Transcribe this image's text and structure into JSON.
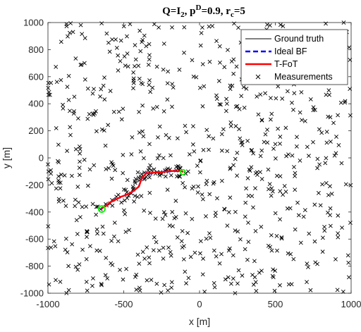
{
  "chart_data": {
    "type": "line",
    "title": {
      "q": "Q=I",
      "q_sub": "2",
      "sep1": ", p",
      "p_sup": "D",
      "p_val": "=0.9, r",
      "r_sub": "c",
      "r_val": "=5"
    },
    "xlabel": "x [m]",
    "ylabel": "y [m]",
    "xlim": [
      -1000,
      1000
    ],
    "ylim": [
      -1000,
      1000
    ],
    "xticks": [
      -1000,
      -500,
      0,
      500,
      1000
    ],
    "yticks": [
      -1000,
      -800,
      -600,
      -400,
      -200,
      0,
      200,
      400,
      600,
      800,
      1000
    ],
    "xtick_labels": [
      "-1000",
      "-500",
      "0",
      "500",
      "1000"
    ],
    "ytick_labels": [
      "-1000",
      "-800",
      "-600",
      "-400",
      "-200",
      "0",
      "200",
      "400",
      "600",
      "800",
      "1000"
    ],
    "grid": false,
    "legend_position": "top-right",
    "legend": [
      {
        "label": "Ground truth",
        "style": "solid",
        "color": "#000000"
      },
      {
        "label": "Ideal BF",
        "style": "dashed",
        "color": "#0000ff"
      },
      {
        "label": "T-FoT",
        "style": "solid",
        "color": "#ff0000"
      },
      {
        "label": "Measurements",
        "style": "marker-x",
        "color": "#000000"
      }
    ],
    "series": [
      {
        "name": "Ground truth",
        "color": "#000000",
        "x": [
          -650,
          -620,
          -590,
          -560,
          -520,
          -480,
          -440,
          -400,
          -380,
          -350,
          -320,
          -290,
          -260,
          -230,
          -200,
          -170,
          -140,
          -120,
          -110
        ],
        "y": [
          -375,
          -355,
          -330,
          -310,
          -290,
          -270,
          -250,
          -210,
          -150,
          -110,
          -115,
          -105,
          -110,
          -100,
          -100,
          -95,
          -100,
          -95,
          -105
        ]
      },
      {
        "name": "Ideal BF",
        "color": "#0000ff",
        "x": [
          -650,
          -620,
          -590,
          -560,
          -520,
          -480,
          -440,
          -400,
          -380,
          -350,
          -320,
          -290,
          -260,
          -230,
          -200,
          -170,
          -140,
          -120,
          -110
        ],
        "y": [
          -378,
          -352,
          -333,
          -308,
          -292,
          -268,
          -252,
          -208,
          -152,
          -108,
          -117,
          -103,
          -112,
          -98,
          -102,
          -93,
          -102,
          -97,
          -103
        ]
      },
      {
        "name": "T-FoT",
        "color": "#ff0000",
        "x": [
          -650,
          -620,
          -590,
          -560,
          -520,
          -480,
          -440,
          -400,
          -380,
          -350,
          -320,
          -290,
          -260,
          -230,
          -200,
          -170,
          -140,
          -120,
          -110
        ],
        "y": [
          -373,
          -358,
          -328,
          -312,
          -288,
          -272,
          -248,
          -212,
          -148,
          -112,
          -113,
          -107,
          -108,
          -102,
          -98,
          -97,
          -98,
          -93,
          -107
        ]
      }
    ],
    "start_marker": {
      "x": -645,
      "y": -378,
      "color": "#00ff00"
    },
    "end_marker": {
      "x": -110,
      "y": -105,
      "color": "#00ff00"
    },
    "measurements": {
      "name": "Measurements",
      "color": "#000000",
      "seed": 7,
      "count": 700,
      "cluster_center": [
        -400,
        -250
      ],
      "cluster_count": 60,
      "note_display": ""
    }
  }
}
